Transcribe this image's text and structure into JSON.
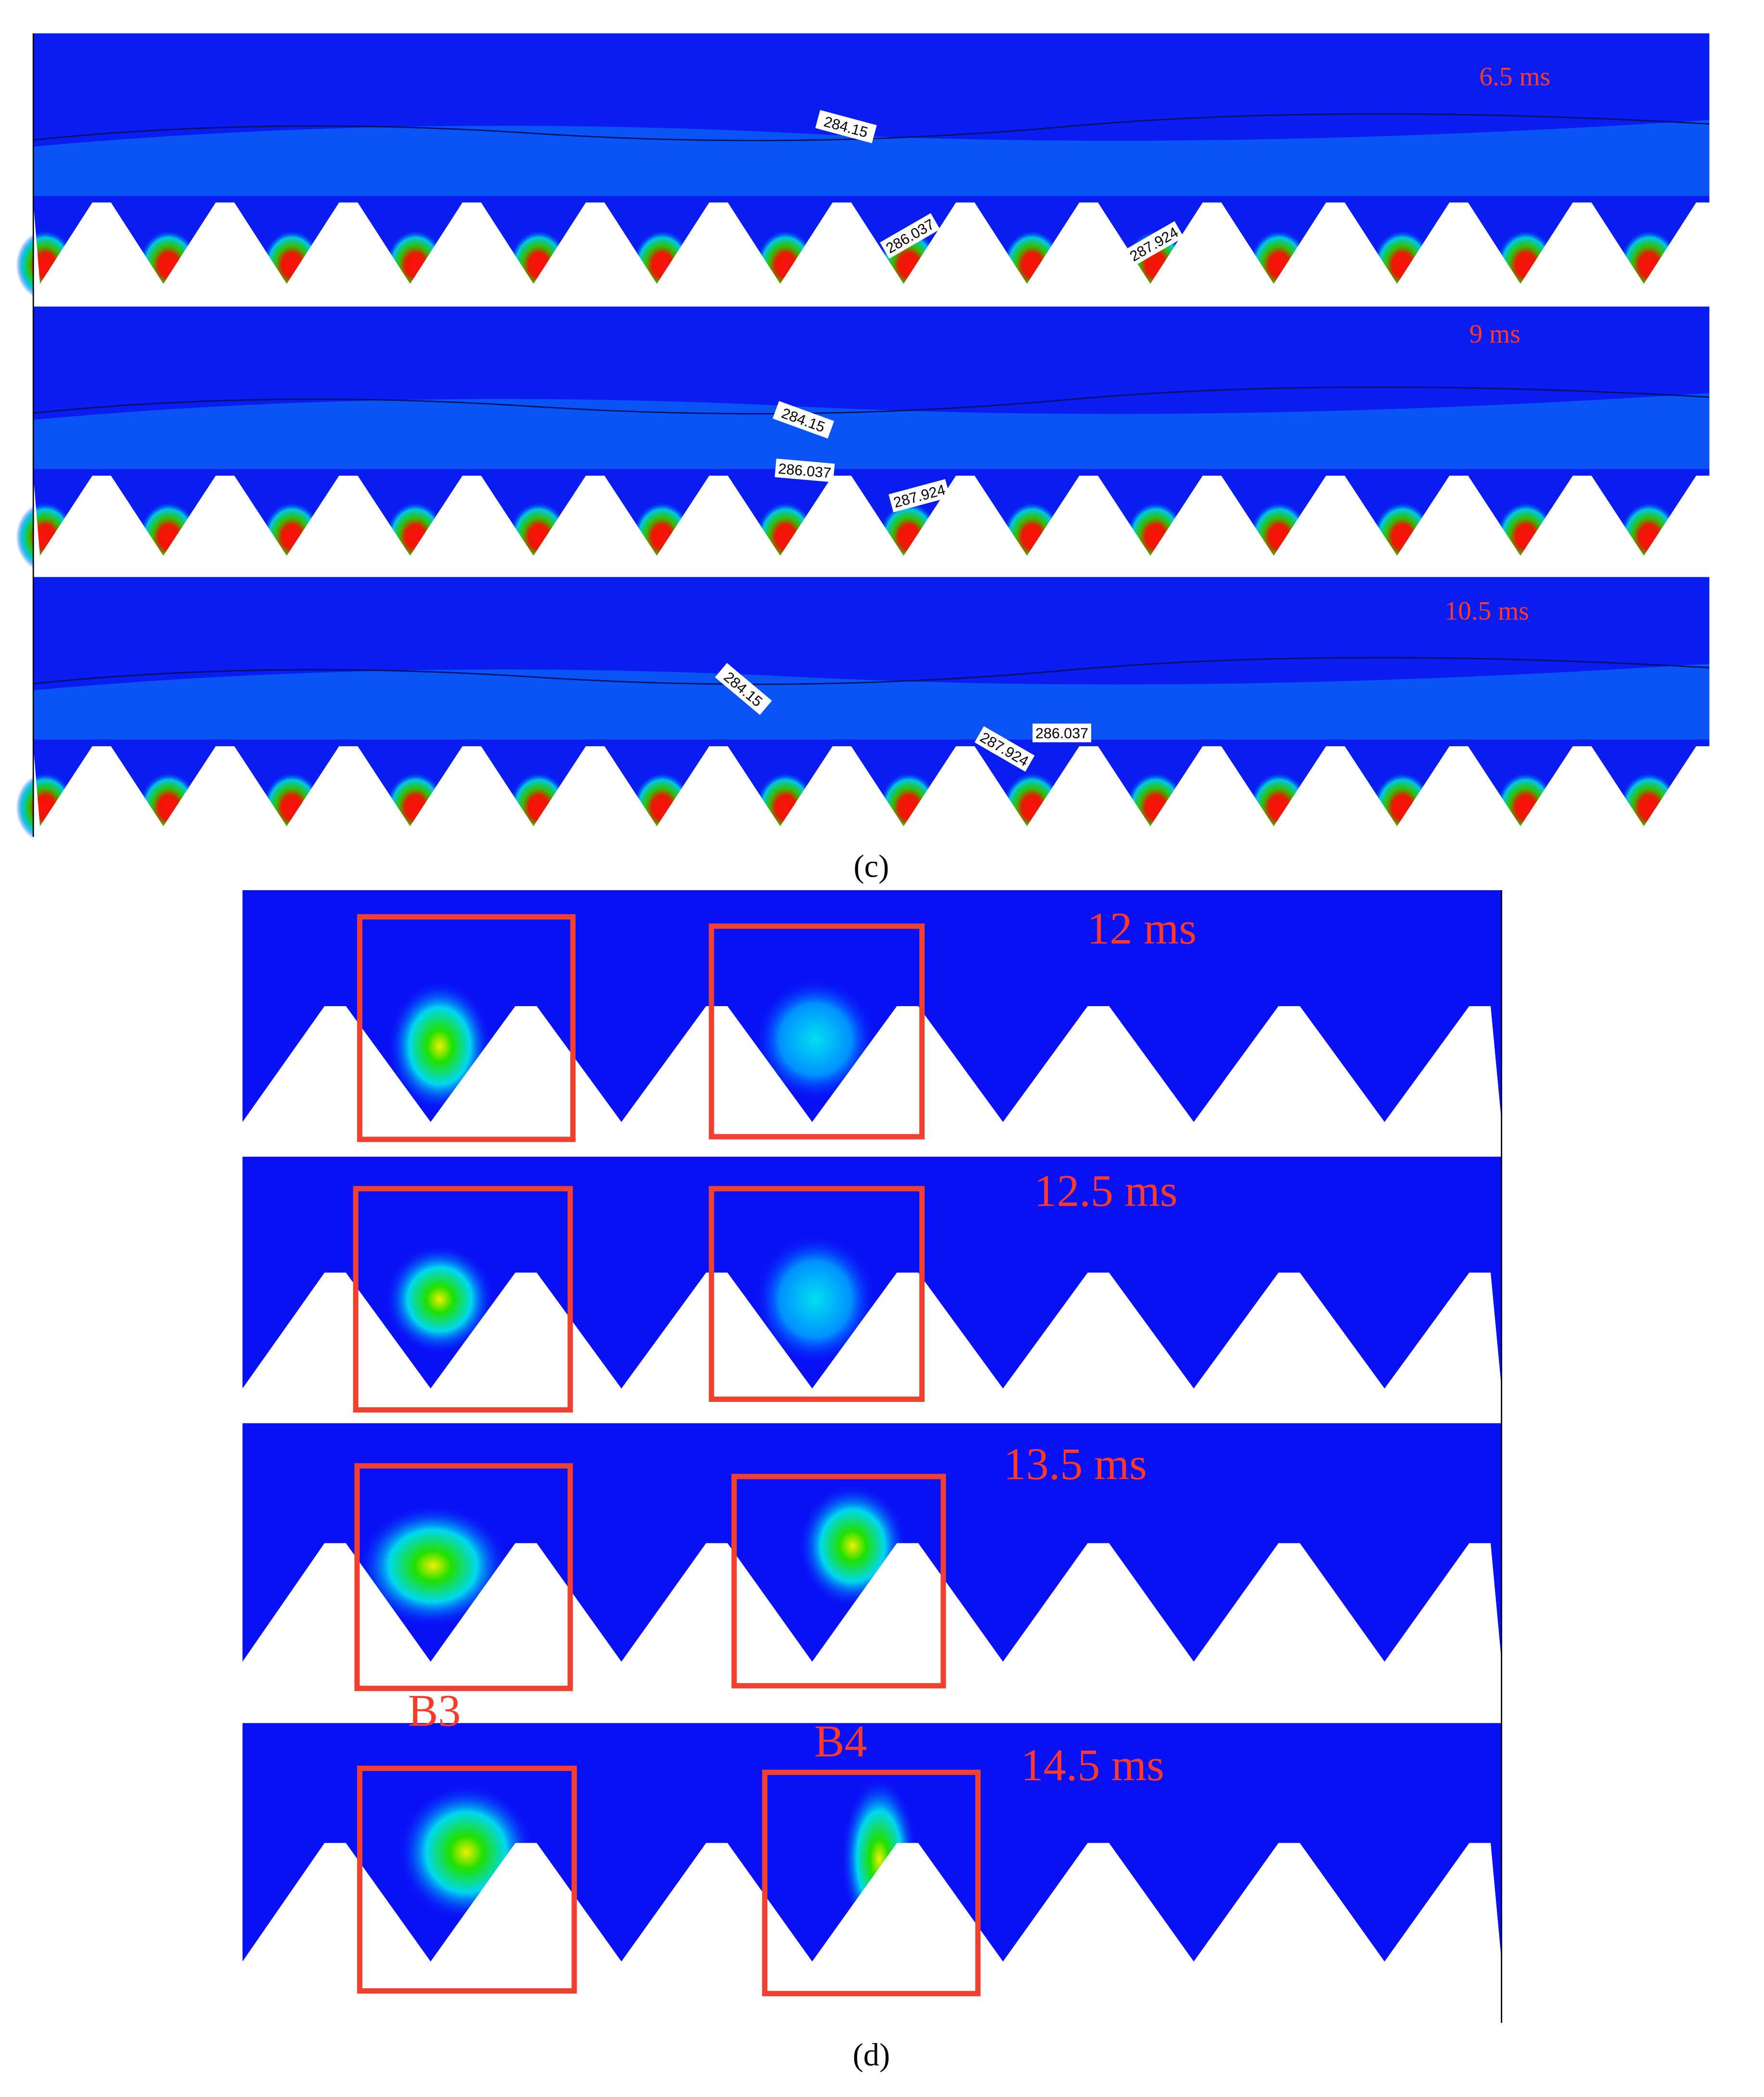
{
  "panel_c": {
    "caption": "(c)",
    "frames": [
      {
        "time": "6.5 ms",
        "contour_labels": [
          "284.15",
          "286.037",
          "287.924"
        ]
      },
      {
        "time": "9 ms",
        "contour_labels": [
          "284.15",
          "286.037",
          "287.924"
        ]
      },
      {
        "time": "10.5 ms",
        "contour_labels": [
          "284.15",
          "286.037",
          "287.924"
        ]
      }
    ]
  },
  "panel_d": {
    "caption": "(d)",
    "frames": [
      {
        "time": "12 ms"
      },
      {
        "time": "12.5 ms"
      },
      {
        "time": "13.5 ms"
      },
      {
        "time": "14.5 ms"
      }
    ],
    "box_labels": [
      "B3",
      "B4"
    ]
  }
}
